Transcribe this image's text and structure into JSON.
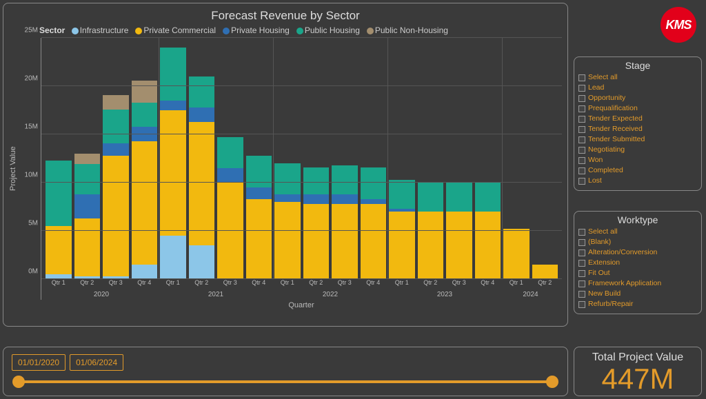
{
  "logo_text": "KMS",
  "logo_bg": "#e2001a",
  "chart": {
    "title": "Forecast Revenue by Sector",
    "legend_prefix": "Sector",
    "series": [
      {
        "key": "infrastructure",
        "label": "Infrastructure",
        "color": "#8cc6e8"
      },
      {
        "key": "private_commercial",
        "label": "Private Commercial",
        "color": "#f2b90f"
      },
      {
        "key": "private_housing",
        "label": "Private Housing",
        "color": "#2f6fb3"
      },
      {
        "key": "public_housing",
        "label": "Public Housing",
        "color": "#1aa58a"
      },
      {
        "key": "public_non_housing",
        "label": "Public Non-Housing",
        "color": "#a38e6e"
      }
    ],
    "y_label": "Project Value",
    "x_label": "Quarter",
    "y_max": 25,
    "y_ticks": [
      "0M",
      "5M",
      "10M",
      "15M",
      "20M",
      "25M"
    ],
    "bg": "#3a3a3a",
    "grid_color": "#555555",
    "axis_color": "#888888",
    "quarters": [
      {
        "q": "Qtr 1",
        "year": "2020",
        "v": {
          "infrastructure": 0.5,
          "private_commercial": 5.0,
          "private_housing": 0.0,
          "public_housing": 6.8,
          "public_non_housing": 0.0
        }
      },
      {
        "q": "Qtr 2",
        "year": "2020",
        "v": {
          "infrastructure": 0.3,
          "private_commercial": 6.0,
          "private_housing": 2.5,
          "public_housing": 3.1,
          "public_non_housing": 1.1
        }
      },
      {
        "q": "Qtr 3",
        "year": "2020",
        "v": {
          "infrastructure": 0.3,
          "private_commercial": 12.5,
          "private_housing": 1.3,
          "public_housing": 3.5,
          "public_non_housing": 1.5
        }
      },
      {
        "q": "Qtr 4",
        "year": "2020",
        "v": {
          "infrastructure": 1.5,
          "private_commercial": 12.8,
          "private_housing": 1.5,
          "public_housing": 2.5,
          "public_non_housing": 2.3
        }
      },
      {
        "q": "Qtr 1",
        "year": "2021",
        "v": {
          "infrastructure": 4.5,
          "private_commercial": 13.0,
          "private_housing": 1.0,
          "public_housing": 5.5,
          "public_non_housing": 0.0
        }
      },
      {
        "q": "Qtr 2",
        "year": "2021",
        "v": {
          "infrastructure": 3.5,
          "private_commercial": 12.8,
          "private_housing": 1.5,
          "public_housing": 3.2,
          "public_non_housing": 0.0
        }
      },
      {
        "q": "Qtr 3",
        "year": "2021",
        "v": {
          "infrastructure": 0.0,
          "private_commercial": 10.0,
          "private_housing": 1.5,
          "public_housing": 3.2,
          "public_non_housing": 0.0
        }
      },
      {
        "q": "Qtr 4",
        "year": "2021",
        "v": {
          "infrastructure": 0.0,
          "private_commercial": 8.3,
          "private_housing": 1.2,
          "public_housing": 3.3,
          "public_non_housing": 0.0
        }
      },
      {
        "q": "Qtr 1",
        "year": "2022",
        "v": {
          "infrastructure": 0.0,
          "private_commercial": 8.0,
          "private_housing": 0.8,
          "public_housing": 3.2,
          "public_non_housing": 0.0
        }
      },
      {
        "q": "Qtr 2",
        "year": "2022",
        "v": {
          "infrastructure": 0.0,
          "private_commercial": 7.8,
          "private_housing": 1.0,
          "public_housing": 2.8,
          "public_non_housing": 0.0
        }
      },
      {
        "q": "Qtr 3",
        "year": "2022",
        "v": {
          "infrastructure": 0.0,
          "private_commercial": 7.8,
          "private_housing": 1.0,
          "public_housing": 3.0,
          "public_non_housing": 0.0
        }
      },
      {
        "q": "Qtr 4",
        "year": "2022",
        "v": {
          "infrastructure": 0.0,
          "private_commercial": 7.8,
          "private_housing": 0.5,
          "public_housing": 3.3,
          "public_non_housing": 0.0
        }
      },
      {
        "q": "Qtr 1",
        "year": "2023",
        "v": {
          "infrastructure": 0.0,
          "private_commercial": 7.0,
          "private_housing": 0.3,
          "public_housing": 3.0,
          "public_non_housing": 0.0
        }
      },
      {
        "q": "Qtr 2",
        "year": "2023",
        "v": {
          "infrastructure": 0.0,
          "private_commercial": 7.0,
          "private_housing": 0.0,
          "public_housing": 3.0,
          "public_non_housing": 0.0
        }
      },
      {
        "q": "Qtr 3",
        "year": "2023",
        "v": {
          "infrastructure": 0.0,
          "private_commercial": 7.0,
          "private_housing": 0.0,
          "public_housing": 3.0,
          "public_non_housing": 0.0
        }
      },
      {
        "q": "Qtr 4",
        "year": "2023",
        "v": {
          "infrastructure": 0.0,
          "private_commercial": 7.0,
          "private_housing": 0.0,
          "public_housing": 3.0,
          "public_non_housing": 0.0
        }
      },
      {
        "q": "Qtr 1",
        "year": "2024",
        "v": {
          "infrastructure": 0.0,
          "private_commercial": 5.2,
          "private_housing": 0.0,
          "public_housing": 0.0,
          "public_non_housing": 0.0
        }
      },
      {
        "q": "Qtr 2",
        "year": "2024",
        "v": {
          "infrastructure": 0.0,
          "private_commercial": 1.5,
          "private_housing": 0.0,
          "public_housing": 0.0,
          "public_non_housing": 0.0
        }
      }
    ],
    "year_groups": [
      {
        "label": "2020",
        "span": 4
      },
      {
        "label": "2021",
        "span": 4
      },
      {
        "label": "2022",
        "span": 4
      },
      {
        "label": "2023",
        "span": 4
      },
      {
        "label": "2024",
        "span": 2
      }
    ]
  },
  "stage": {
    "title": "Stage",
    "items": [
      "Select all",
      "Lead",
      "Opportunity",
      "Prequalification",
      "Tender Expected",
      "Tender Received",
      "Tender Submitted",
      "Negotiating",
      "Won",
      "Completed",
      "Lost"
    ]
  },
  "worktype": {
    "title": "Worktype",
    "items": [
      "Select all",
      "(Blank)",
      "Alteration/Conversion",
      "Extension",
      "Fit Out",
      "Framework Application",
      "New Build",
      "Refurb/Repair"
    ]
  },
  "slider": {
    "start": "01/01/2020",
    "end": "01/06/2024",
    "thumb_color": "#e39b2a",
    "track_color": "#e39b2a"
  },
  "total": {
    "label": "Total Project Value",
    "value": "447M",
    "value_color": "#e39b2a"
  },
  "accent": "#e39b2a"
}
